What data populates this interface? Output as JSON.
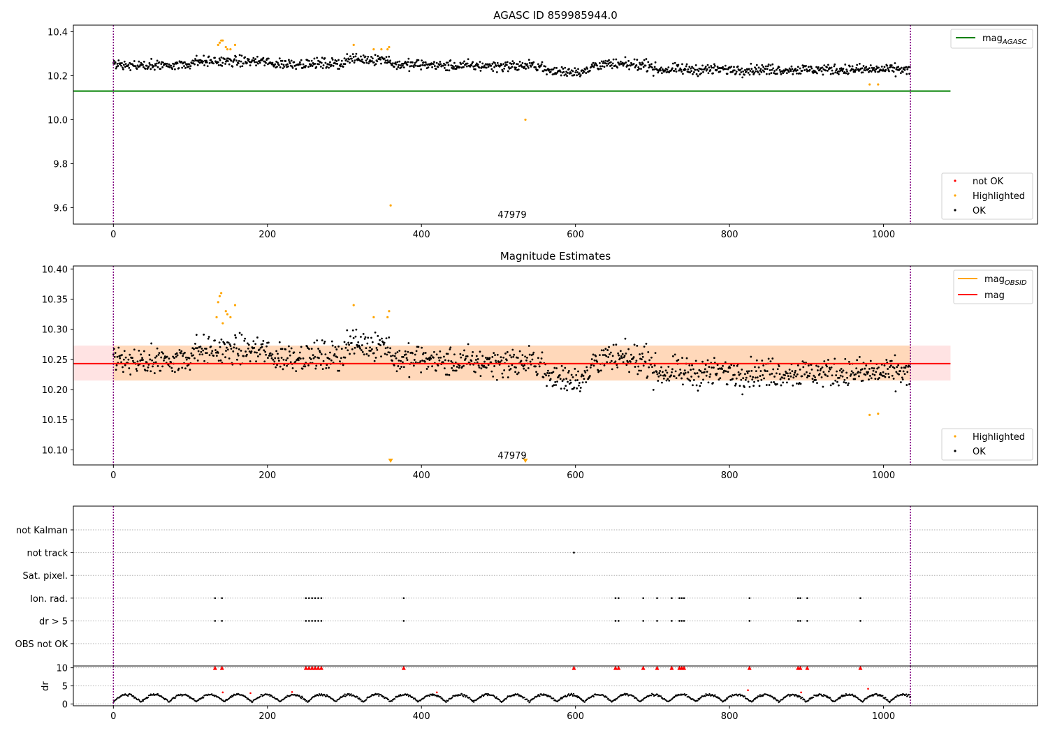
{
  "colors": {
    "ok": "#000000",
    "highlighted": "#ffa500",
    "not_ok": "#ff0000",
    "mag_agasc": "#008000",
    "mag_obsid": "#ffa500",
    "mag": "#ff0000",
    "band": "#ffc0c0",
    "vline": "#800080",
    "grid": "#b0b0b0"
  },
  "chart_data": [
    {
      "type": "scatter",
      "title": "AGASC ID 859985944.0",
      "xlim": [
        -52,
        1200
      ],
      "ylim": [
        9.525,
        10.43
      ],
      "xticks": [
        "0",
        "200",
        "400",
        "600",
        "800",
        "1000"
      ],
      "yticks": [
        "9.6",
        "9.8",
        "10.0",
        "10.2",
        "10.4"
      ],
      "annotation": "47979",
      "vlines": [
        0,
        1035
      ],
      "mag_agasc": 10.13,
      "line_x_range": [
        -52,
        1087
      ],
      "highlighted_points": [
        [
          136,
          10.34
        ],
        [
          138,
          10.35
        ],
        [
          140,
          10.36
        ],
        [
          142,
          10.36
        ],
        [
          146,
          10.33
        ],
        [
          148,
          10.32
        ],
        [
          152,
          10.32
        ],
        [
          158,
          10.34
        ],
        [
          312,
          10.34
        ],
        [
          338,
          10.32
        ],
        [
          348,
          10.32
        ],
        [
          356,
          10.32
        ],
        [
          358,
          10.33
        ],
        [
          360,
          9.61
        ],
        [
          535,
          10.0
        ],
        [
          982,
          10.16
        ],
        [
          993,
          10.16
        ]
      ],
      "legend_lines": {
        "mag_agasc": {
          "main": "mag",
          "sub": "AGASC"
        }
      },
      "legend_points": {
        "not_ok": "not OK",
        "highlighted": "Highlighted",
        "ok": "OK"
      }
    },
    {
      "type": "scatter",
      "title": "Magnitude Estimates",
      "xlim": [
        -52,
        1200
      ],
      "ylim": [
        10.075,
        10.405
      ],
      "xticks": [
        "0",
        "200",
        "400",
        "600",
        "800",
        "1000"
      ],
      "yticks": [
        "10.10",
        "10.15",
        "10.20",
        "10.25",
        "10.30",
        "10.35",
        "10.40"
      ],
      "annotation": "47979",
      "vlines": [
        0,
        1035
      ],
      "mag": 10.243,
      "band": [
        10.215,
        10.273
      ],
      "line_x_range": [
        -52,
        1087
      ],
      "highlighted_points": [
        [
          134,
          10.32
        ],
        [
          136,
          10.345
        ],
        [
          138,
          10.355
        ],
        [
          140,
          10.36
        ],
        [
          142,
          10.31
        ],
        [
          146,
          10.33
        ],
        [
          148,
          10.325
        ],
        [
          152,
          10.32
        ],
        [
          158,
          10.34
        ],
        [
          312,
          10.34
        ],
        [
          338,
          10.32
        ],
        [
          356,
          10.32
        ],
        [
          358,
          10.33
        ],
        [
          982,
          10.158
        ],
        [
          993,
          10.16
        ]
      ],
      "offscale_markers": [
        360,
        535
      ],
      "legend_lines": {
        "mag_obsid": {
          "main": "mag",
          "sub": "OBSID"
        },
        "mag": "mag"
      },
      "legend_points": {
        "highlighted": "Highlighted",
        "ok": "OK"
      }
    },
    {
      "type": "scatter",
      "title": "",
      "xlim": [
        -52,
        1200
      ],
      "categories": [
        "not Kalman",
        "not track",
        "Sat. pixel.",
        "Ion. rad.",
        "dr > 5",
        "OBS not OK"
      ],
      "vlines": [
        0,
        1035
      ],
      "flag_points": {
        "not track": [
          598
        ],
        "Ion. rad.": [
          132,
          141,
          250,
          254,
          258,
          262,
          266,
          270,
          377,
          652,
          656,
          688,
          706,
          725,
          735,
          738,
          741,
          826,
          889,
          892,
          901,
          970
        ],
        "dr > 5": [
          132,
          141,
          250,
          254,
          258,
          262,
          266,
          270,
          377,
          652,
          656,
          688,
          706,
          725,
          735,
          738,
          741,
          826,
          889,
          892,
          901,
          970
        ]
      }
    },
    {
      "type": "scatter",
      "title": "",
      "xlim": [
        -52,
        1200
      ],
      "ylim": [
        -0.5,
        10.5
      ],
      "xticks": [
        "0",
        "200",
        "400",
        "600",
        "800",
        "1000"
      ],
      "yticks": [
        "0",
        "5",
        "10"
      ],
      "ylabel": "dr",
      "vlines": [
        0,
        1035
      ],
      "clip_triangles": [
        132,
        141,
        250,
        254,
        258,
        262,
        266,
        270,
        377,
        598,
        652,
        656,
        688,
        706,
        725,
        735,
        738,
        741,
        826,
        889,
        892,
        901,
        970
      ],
      "red_points": [
        [
          142,
          3.2
        ],
        [
          178,
          3.0
        ],
        [
          232,
          3.3
        ],
        [
          420,
          3.2
        ],
        [
          824,
          3.8
        ],
        [
          893,
          3.2
        ],
        [
          980,
          4.2
        ]
      ]
    }
  ]
}
